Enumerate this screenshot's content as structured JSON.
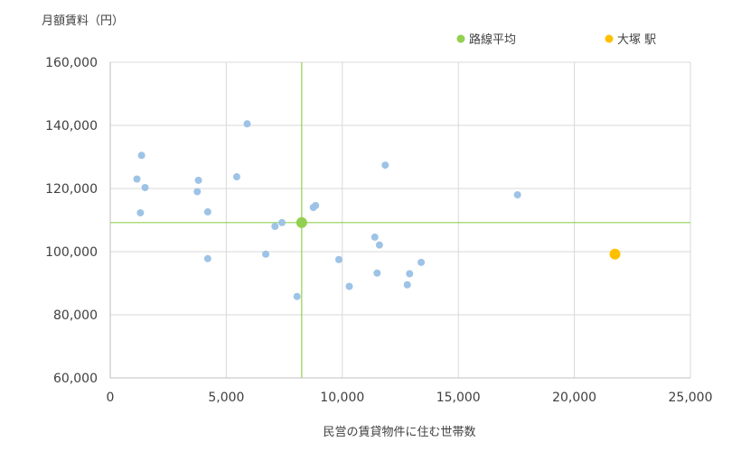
{
  "chart_data": {
    "type": "scatter",
    "ylabel": "月額賃料（円）",
    "xlabel": "民営の賃貸物件に住む世帯数",
    "xlim": [
      0,
      25000
    ],
    "ylim": [
      60000,
      160000
    ],
    "x_ticks": [
      0,
      5000,
      10000,
      15000,
      20000,
      25000
    ],
    "x_tick_labels": [
      "0",
      "5,000",
      "10,000",
      "15,000",
      "20,000",
      "25,000"
    ],
    "y_ticks": [
      60000,
      80000,
      100000,
      120000,
      140000,
      160000
    ],
    "y_tick_labels": [
      "60,000",
      "80,000",
      "100,000",
      "120,000",
      "140,000",
      "160,000"
    ],
    "grid": true,
    "legend_position": "top-right",
    "colors": {
      "stations": "#9dc3e6",
      "average": "#92d050",
      "highlight": "#ffc000",
      "grid": "#d9d9d9",
      "axis": "#bfbfbf"
    },
    "series": [
      {
        "key": "stations",
        "points": [
          [
            1150,
            123000
          ],
          [
            1300,
            112300
          ],
          [
            1350,
            130500
          ],
          [
            1500,
            120300
          ],
          [
            3750,
            119000
          ],
          [
            3800,
            122600
          ],
          [
            4200,
            112600
          ],
          [
            4200,
            97800
          ],
          [
            5450,
            123700
          ],
          [
            5900,
            140500
          ],
          [
            6700,
            99200
          ],
          [
            7100,
            108000
          ],
          [
            7400,
            109200
          ],
          [
            8050,
            85800
          ],
          [
            8750,
            114000
          ],
          [
            8850,
            114600
          ],
          [
            9850,
            97500
          ],
          [
            10300,
            89000
          ],
          [
            11400,
            104600
          ],
          [
            11500,
            93200
          ],
          [
            11600,
            102100
          ],
          [
            11850,
            127400
          ],
          [
            12800,
            89500
          ],
          [
            12900,
            93000
          ],
          [
            13400,
            96600
          ],
          [
            17550,
            118000
          ]
        ]
      },
      {
        "key": "average",
        "name": "路線平均",
        "points": [
          [
            8250,
            109200
          ]
        ]
      },
      {
        "key": "highlight",
        "name": "大塚 駅",
        "points": [
          [
            21750,
            99200
          ]
        ]
      }
    ],
    "reference_lines": {
      "x": 8250,
      "y": 109200
    }
  }
}
